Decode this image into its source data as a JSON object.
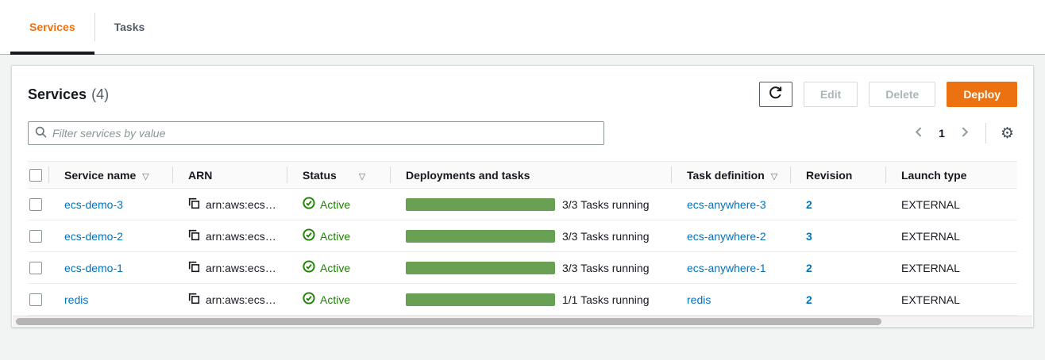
{
  "tabs": {
    "services": {
      "label": "Services"
    },
    "tasks": {
      "label": "Tasks"
    }
  },
  "panel": {
    "title": "Services",
    "count": "(4)",
    "buttons": {
      "edit": "Edit",
      "delete": "Delete",
      "deploy": "Deploy"
    },
    "filter_placeholder": "Filter services by value",
    "pagination": {
      "current_page": "1"
    }
  },
  "table": {
    "header": {
      "service_name": "Service name",
      "arn": "ARN",
      "status": "Status",
      "deployments": "Deployments and tasks",
      "task_definition": "Task definition",
      "revision": "Revision",
      "launch_type": "Launch type"
    },
    "rows": [
      {
        "service_name": "ecs-demo-3",
        "arn": "arn:aws:ecs…",
        "status": "Active",
        "tasks_label": "3/3 Tasks running",
        "progress_width": "100%",
        "task_definition": "ecs-anywhere-3",
        "revision": "2",
        "launch_type": "EXTERNAL"
      },
      {
        "service_name": "ecs-demo-2",
        "arn": "arn:aws:ecs…",
        "status": "Active",
        "tasks_label": "3/3 Tasks running",
        "progress_width": "100%",
        "task_definition": "ecs-anywhere-2",
        "revision": "3",
        "launch_type": "EXTERNAL"
      },
      {
        "service_name": "ecs-demo-1",
        "arn": "arn:aws:ecs…",
        "status": "Active",
        "tasks_label": "3/3 Tasks running",
        "progress_width": "100%",
        "task_definition": "ecs-anywhere-1",
        "revision": "2",
        "launch_type": "EXTERNAL"
      },
      {
        "service_name": "redis",
        "arn": "arn:aws:ecs…",
        "status": "Active",
        "tasks_label": "1/1 Tasks running",
        "progress_width": "100%",
        "task_definition": "redis",
        "revision": "2",
        "launch_type": "EXTERNAL"
      }
    ]
  },
  "icons": {
    "sort_glyph": "▽",
    "gear_glyph": "⚙"
  },
  "colors": {
    "accent_orange": "#ec7211",
    "link_blue": "#0073bb",
    "success_green": "#1d8102",
    "progress_green": "#69a154",
    "tab_underline": "#16191f"
  }
}
